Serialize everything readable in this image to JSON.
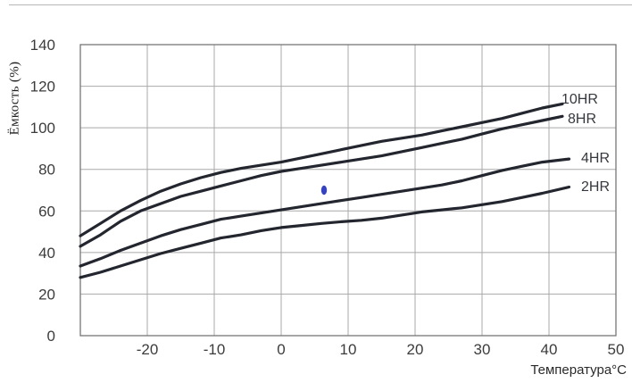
{
  "figure": {
    "background": "#ffffff",
    "top_rule_color": "#b7b7b7"
  },
  "chart_data": {
    "type": "line",
    "title": "",
    "xlabel": "Температура°C",
    "ylabel": "Ёмкость (%)",
    "xlim": [
      -30,
      50
    ],
    "ylim": [
      0,
      140
    ],
    "grid": true,
    "legend_position": "end-of-line-labels",
    "colors": {
      "curve": "#23262e",
      "grid": "#a9a9a9",
      "border": "#767676",
      "tick_text": "#3c3c3c",
      "marker": "#3543c0"
    },
    "x_ticks": [
      {
        "v": -20,
        "label": "-20"
      },
      {
        "v": -10,
        "label": "-10"
      },
      {
        "v": 0,
        "label": "0"
      },
      {
        "v": 10,
        "label": "10"
      },
      {
        "v": 20,
        "label": "20"
      },
      {
        "v": 30,
        "label": "30"
      },
      {
        "v": 40,
        "label": "40"
      },
      {
        "v": 50,
        "label": "50"
      }
    ],
    "y_ticks": [
      {
        "v": 0,
        "label": "0"
      },
      {
        "v": 20,
        "label": "20"
      },
      {
        "v": 40,
        "label": "40"
      },
      {
        "v": 60,
        "label": "60"
      },
      {
        "v": 80,
        "label": "80"
      },
      {
        "v": 100,
        "label": "100"
      },
      {
        "v": 120,
        "label": "120"
      },
      {
        "v": 140,
        "label": "140"
      }
    ],
    "series": [
      {
        "name": "10HR",
        "points": [
          [
            -30,
            48
          ],
          [
            -27,
            54
          ],
          [
            -24,
            60
          ],
          [
            -21,
            65
          ],
          [
            -18,
            69.5
          ],
          [
            -15,
            73
          ],
          [
            -12,
            76
          ],
          [
            -9,
            78.5
          ],
          [
            -6,
            80.5
          ],
          [
            -3,
            82
          ],
          [
            0,
            83.5
          ],
          [
            3,
            85.5
          ],
          [
            6,
            87.5
          ],
          [
            9,
            89.5
          ],
          [
            12,
            91.5
          ],
          [
            15,
            93.5
          ],
          [
            18,
            95
          ],
          [
            21,
            96.5
          ],
          [
            24,
            98.5
          ],
          [
            27,
            100.5
          ],
          [
            30,
            102.5
          ],
          [
            33,
            104.5
          ],
          [
            36,
            107
          ],
          [
            39,
            109.5
          ],
          [
            42,
            111.5
          ]
        ]
      },
      {
        "name": "8HR",
        "points": [
          [
            -30,
            43
          ],
          [
            -27,
            48.5
          ],
          [
            -24,
            55
          ],
          [
            -21,
            60
          ],
          [
            -18,
            63.5
          ],
          [
            -15,
            67
          ],
          [
            -12,
            69.5
          ],
          [
            -9,
            72
          ],
          [
            -6,
            74.5
          ],
          [
            -3,
            77
          ],
          [
            0,
            79
          ],
          [
            3,
            80.5
          ],
          [
            6,
            82
          ],
          [
            9,
            83.5
          ],
          [
            12,
            85
          ],
          [
            15,
            86.5
          ],
          [
            18,
            88.5
          ],
          [
            21,
            90.5
          ],
          [
            24,
            92.5
          ],
          [
            27,
            94.5
          ],
          [
            30,
            97
          ],
          [
            33,
            99.5
          ],
          [
            36,
            101.5
          ],
          [
            39,
            103.5
          ],
          [
            42,
            105.5
          ]
        ]
      },
      {
        "name": "4HR",
        "points": [
          [
            -30,
            33.5
          ],
          [
            -27,
            37
          ],
          [
            -24,
            41
          ],
          [
            -21,
            44.5
          ],
          [
            -18,
            48
          ],
          [
            -15,
            51
          ],
          [
            -12,
            53.5
          ],
          [
            -9,
            56
          ],
          [
            -6,
            57.5
          ],
          [
            -3,
            59
          ],
          [
            0,
            60.5
          ],
          [
            3,
            62
          ],
          [
            6,
            63.5
          ],
          [
            9,
            65
          ],
          [
            12,
            66.5
          ],
          [
            15,
            68
          ],
          [
            18,
            69.5
          ],
          [
            21,
            71
          ],
          [
            24,
            72.5
          ],
          [
            27,
            74.5
          ],
          [
            30,
            77
          ],
          [
            33,
            79.5
          ],
          [
            36,
            81.5
          ],
          [
            39,
            83.5
          ],
          [
            43,
            85
          ]
        ]
      },
      {
        "name": "2HR",
        "points": [
          [
            -30,
            28
          ],
          [
            -27,
            30.5
          ],
          [
            -24,
            33.5
          ],
          [
            -21,
            36.5
          ],
          [
            -18,
            39.5
          ],
          [
            -15,
            42
          ],
          [
            -12,
            44.5
          ],
          [
            -9,
            47
          ],
          [
            -6,
            48.5
          ],
          [
            -3,
            50.5
          ],
          [
            0,
            52
          ],
          [
            3,
            53
          ],
          [
            6,
            54
          ],
          [
            9,
            54.8
          ],
          [
            12,
            55.5
          ],
          [
            15,
            56.5
          ],
          [
            18,
            58
          ],
          [
            21,
            59.5
          ],
          [
            24,
            60.5
          ],
          [
            27,
            61.5
          ],
          [
            30,
            63
          ],
          [
            33,
            64.5
          ],
          [
            36,
            66.5
          ],
          [
            39,
            68.5
          ],
          [
            43,
            71.5
          ]
        ]
      }
    ],
    "annotation_marker": {
      "x": 6.4,
      "y": 70
    }
  }
}
